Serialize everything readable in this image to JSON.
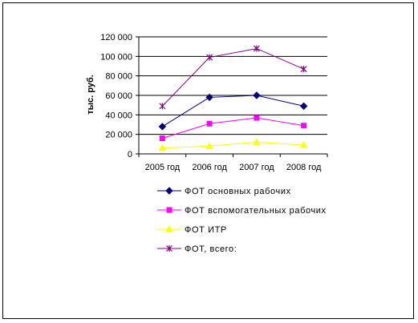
{
  "chart_data": {
    "type": "line",
    "categories": [
      "2005 год",
      "2006 год",
      "2007 год",
      "2008 год"
    ],
    "ylabel": "тыс. руб.",
    "ylim": [
      0,
      120000
    ],
    "yticks": [
      0,
      20000,
      40000,
      60000,
      80000,
      100000,
      120000
    ],
    "ytick_labels": [
      "0",
      "20 000",
      "40 000",
      "60 000",
      "80 000",
      "100 000",
      "120 000"
    ],
    "grid": true,
    "legend_position": "bottom",
    "series": [
      {
        "name": "ФОТ основных рабочих",
        "values": [
          28000,
          58000,
          60000,
          49000
        ],
        "color": "#000080",
        "marker": "diamond"
      },
      {
        "name": "ФОТ вспомогательных рабочих",
        "values": [
          16000,
          31000,
          37000,
          29000
        ],
        "color": "#ff00ff",
        "marker": "square"
      },
      {
        "name": "ФОТ ИТР",
        "values": [
          6000,
          8000,
          12000,
          9000
        ],
        "color": "#ffff00",
        "marker": "triangle"
      },
      {
        "name": "ФОТ, всего:",
        "values": [
          49000,
          99000,
          108000,
          87000
        ],
        "color": "#800080",
        "marker": "star"
      }
    ]
  }
}
